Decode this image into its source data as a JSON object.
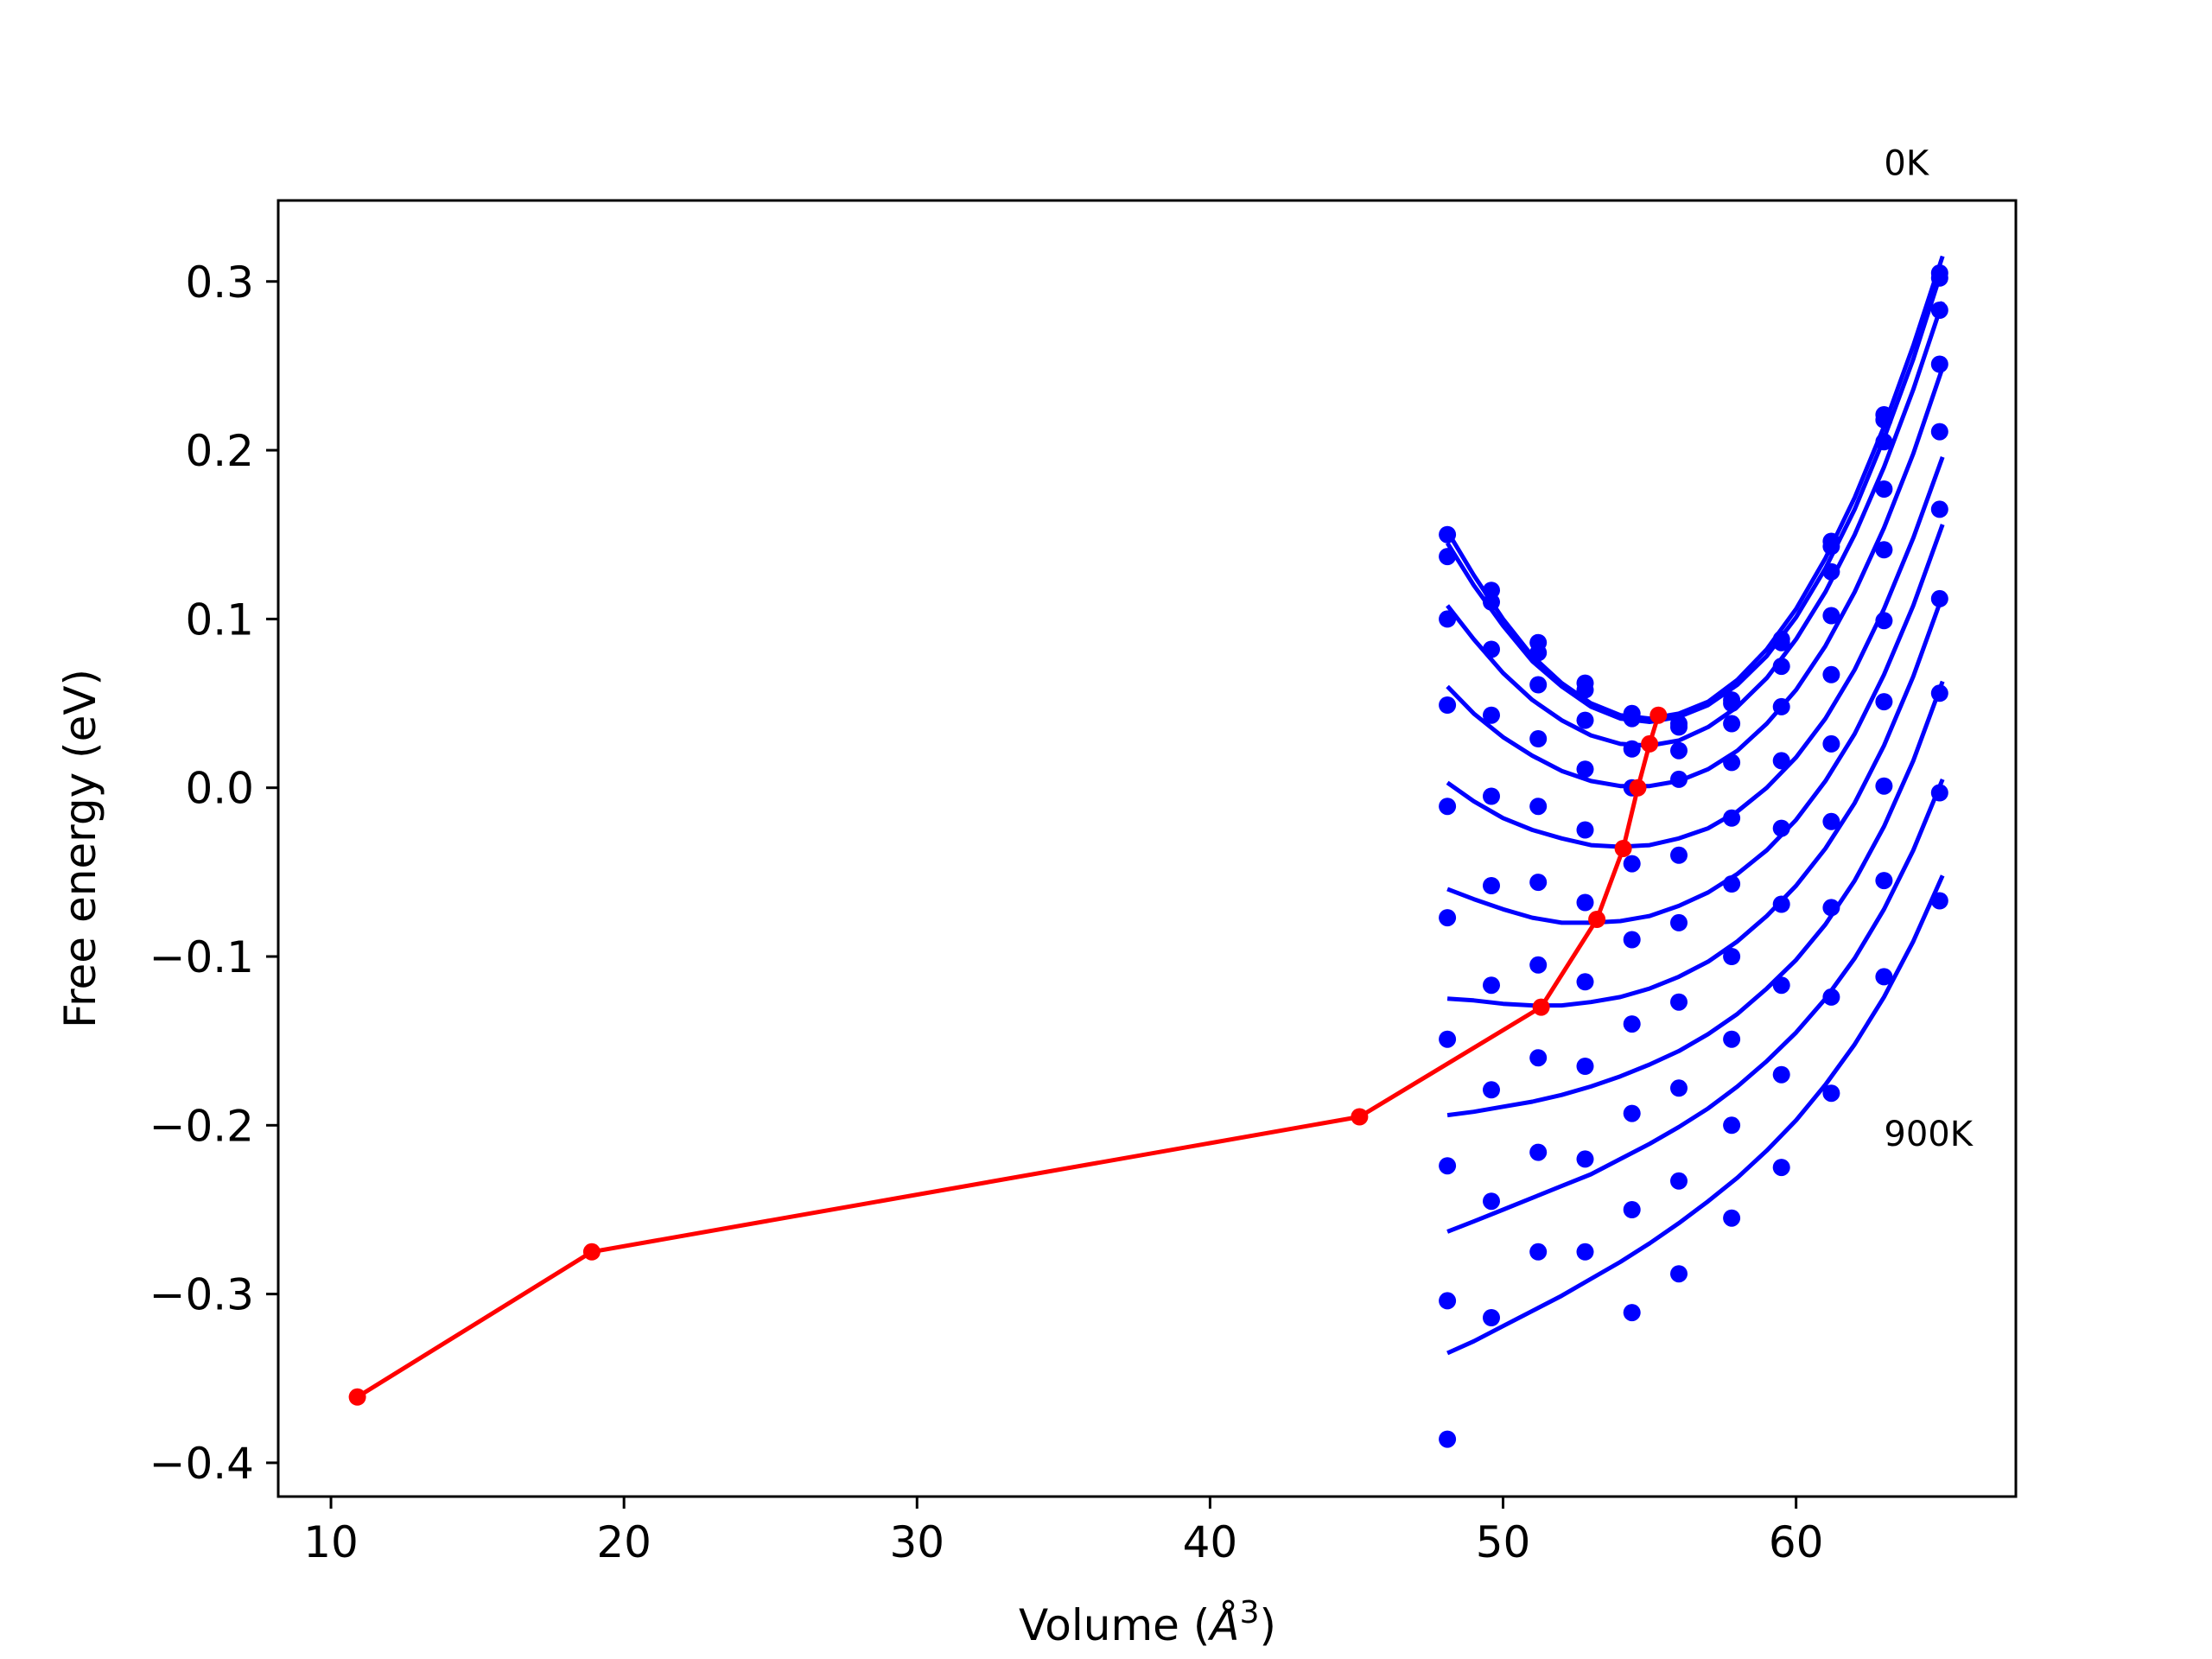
{
  "chart_data": {
    "type": "line",
    "title": "",
    "xlabel": "Volume (",
    "xlabel_symbol": "Å",
    "xlabel_exponent": "3",
    "xlabel_close": ")",
    "ylabel": "Free energy (eV)",
    "xlim": [
      8.2,
      67.5
    ],
    "ylim": [
      -0.42,
      0.348
    ],
    "xticks": [
      10,
      20,
      30,
      40,
      50,
      60
    ],
    "xtick_labels": [
      "10",
      "20",
      "30",
      "40",
      "50",
      "60"
    ],
    "yticks": [
      -0.4,
      -0.3,
      -0.2,
      -0.1,
      0.0,
      0.1,
      0.2,
      0.3
    ],
    "ytick_labels": [
      "−0.4",
      "−0.3",
      "−0.2",
      "−0.1",
      "0.0",
      "0.1",
      "0.2",
      "0.3"
    ],
    "grid": false,
    "annotations": [
      {
        "text": "0K",
        "x": 63.0,
        "y": 0.363
      },
      {
        "text": "900K",
        "x": 63.0,
        "y": -0.212
      }
    ],
    "colors": {
      "fit": "#0000ff",
      "points": "#0000ff",
      "minimum_path": "#ff0000"
    },
    "volumes": [
      48.1,
      49.6,
      51.2,
      52.8,
      54.4,
      56.0,
      57.8,
      59.5,
      61.2,
      63.0,
      64.9
    ],
    "point_series": [
      {
        "values": [
          0.15,
          0.117,
          0.086,
          0.062,
          0.044,
          0.038,
          0.052,
          0.088,
          0.146,
          0.221,
          0.305
        ]
      },
      {
        "values": [
          0.137,
          0.11,
          0.08,
          0.058,
          0.041,
          0.036,
          0.05,
          0.086,
          0.143,
          0.218,
          0.302
        ]
      },
      {
        "values": [
          0.1,
          0.082,
          0.061,
          0.04,
          0.023,
          0.022,
          0.038,
          0.072,
          0.128,
          0.205,
          0.283
        ]
      },
      {
        "values": [
          0.049,
          0.043,
          0.029,
          0.011,
          0.0,
          0.005,
          0.015,
          0.048,
          0.102,
          0.177,
          0.251
        ]
      },
      {
        "values": [
          -0.011,
          -0.005,
          -0.011,
          -0.025,
          -0.045,
          -0.04,
          -0.018,
          0.016,
          0.067,
          0.141,
          0.211
        ]
      },
      {
        "values": [
          -0.077,
          -0.058,
          -0.056,
          -0.068,
          -0.09,
          -0.08,
          -0.057,
          -0.024,
          0.026,
          0.099,
          0.165
        ]
      },
      {
        "values": [
          -0.149,
          -0.117,
          -0.105,
          -0.115,
          -0.14,
          -0.127,
          -0.1,
          -0.069,
          -0.02,
          0.051,
          0.112
        ]
      },
      {
        "values": [
          -0.224,
          -0.179,
          -0.16,
          -0.165,
          -0.193,
          -0.178,
          -0.149,
          -0.117,
          -0.071,
          0.001,
          0.056
        ]
      },
      {
        "values": [
          -0.304,
          -0.245,
          -0.216,
          -0.22,
          -0.25,
          -0.233,
          -0.2,
          -0.17,
          -0.124,
          -0.055,
          -0.003
        ]
      },
      {
        "values": [
          -0.386,
          -0.314,
          -0.275,
          -0.275,
          -0.311,
          -0.288,
          -0.255,
          -0.225,
          -0.181,
          -0.112,
          -0.067
        ]
      }
    ],
    "fit_series": [
      {
        "x": [
          48.1,
          49.0,
          50.0,
          51.0,
          52.0,
          53.0,
          54.0,
          55.0,
          56.0,
          57.0,
          58.0,
          59.0,
          60.0,
          61.0,
          62.0,
          63.0,
          64.0,
          65.0
        ],
        "y": [
          0.152,
          0.126,
          0.1,
          0.078,
          0.062,
          0.05,
          0.043,
          0.041,
          0.044,
          0.051,
          0.064,
          0.082,
          0.106,
          0.136,
          0.172,
          0.214,
          0.262,
          0.315
        ]
      },
      {
        "x": [
          48.1,
          49.0,
          50.0,
          51.0,
          52.0,
          53.0,
          54.0,
          55.0,
          56.0,
          57.0,
          58.0,
          59.0,
          60.0,
          61.0,
          62.0,
          63.0,
          64.0,
          65.0
        ],
        "y": [
          0.145,
          0.12,
          0.096,
          0.075,
          0.06,
          0.048,
          0.041,
          0.039,
          0.042,
          0.049,
          0.061,
          0.078,
          0.101,
          0.13,
          0.165,
          0.207,
          0.254,
          0.308
        ]
      },
      {
        "x": [
          48.1,
          49.0,
          50.0,
          51.0,
          52.0,
          53.0,
          54.0,
          55.0,
          56.0,
          57.0,
          58.0,
          59.0,
          60.0,
          61.0,
          62.0,
          63.0,
          64.0,
          65.0
        ],
        "y": [
          0.108,
          0.088,
          0.068,
          0.052,
          0.04,
          0.031,
          0.026,
          0.025,
          0.028,
          0.036,
          0.048,
          0.065,
          0.088,
          0.116,
          0.15,
          0.19,
          0.236,
          0.288
        ]
      },
      {
        "x": [
          48.1,
          49.0,
          50.0,
          51.0,
          52.0,
          53.0,
          54.0,
          55.0,
          56.0,
          57.0,
          58.0,
          59.0,
          60.0,
          61.0,
          62.0,
          63.0,
          64.0,
          65.0
        ],
        "y": [
          0.06,
          0.044,
          0.03,
          0.019,
          0.01,
          0.004,
          0.001,
          0.001,
          0.004,
          0.011,
          0.022,
          0.038,
          0.058,
          0.084,
          0.116,
          0.154,
          0.198,
          0.249
        ]
      },
      {
        "x": [
          48.1,
          49.0,
          50.0,
          51.0,
          52.0,
          53.0,
          54.0,
          55.0,
          56.0,
          57.0,
          58.0,
          59.0,
          60.0,
          61.0,
          62.0,
          63.0,
          64.0,
          65.0
        ],
        "y": [
          0.003,
          -0.008,
          -0.018,
          -0.025,
          -0.03,
          -0.034,
          -0.035,
          -0.034,
          -0.03,
          -0.024,
          -0.014,
          0.0,
          0.018,
          0.041,
          0.07,
          0.106,
          0.148,
          0.196
        ]
      },
      {
        "x": [
          48.1,
          49.0,
          50.0,
          51.0,
          52.0,
          53.0,
          54.0,
          55.0,
          56.0,
          57.0,
          58.0,
          59.0,
          60.0,
          61.0,
          62.0,
          63.0,
          64.0,
          65.0
        ],
        "y": [
          -0.06,
          -0.066,
          -0.072,
          -0.077,
          -0.08,
          -0.08,
          -0.079,
          -0.076,
          -0.07,
          -0.062,
          -0.051,
          -0.037,
          -0.019,
          0.004,
          0.032,
          0.067,
          0.108,
          0.156
        ]
      },
      {
        "x": [
          48.1,
          49.0,
          50.0,
          51.0,
          52.0,
          53.0,
          54.0,
          55.0,
          56.0,
          57.0,
          58.0,
          59.0,
          60.0,
          61.0,
          62.0,
          63.0,
          64.0,
          65.0
        ],
        "y": [
          -0.125,
          -0.126,
          -0.128,
          -0.129,
          -0.129,
          -0.127,
          -0.124,
          -0.119,
          -0.112,
          -0.103,
          -0.091,
          -0.076,
          -0.058,
          -0.036,
          -0.009,
          0.025,
          0.066,
          0.114
        ]
      },
      {
        "x": [
          48.1,
          49.0,
          50.0,
          51.0,
          52.0,
          53.0,
          54.0,
          55.0,
          56.0,
          57.0,
          58.0,
          59.0,
          60.0,
          61.0,
          62.0,
          63.0,
          64.0,
          65.0
        ],
        "y": [
          -0.194,
          -0.192,
          -0.189,
          -0.186,
          -0.182,
          -0.177,
          -0.171,
          -0.164,
          -0.156,
          -0.146,
          -0.134,
          -0.119,
          -0.102,
          -0.081,
          -0.055,
          -0.023,
          0.016,
          0.063
        ]
      },
      {
        "x": [
          48.1,
          49.0,
          50.0,
          51.0,
          52.0,
          53.0,
          54.0,
          55.0,
          56.0,
          57.0,
          58.0,
          59.0,
          60.0,
          61.0,
          62.0,
          63.0,
          64.0,
          65.0
        ],
        "y": [
          -0.263,
          -0.257,
          -0.25,
          -0.243,
          -0.236,
          -0.229,
          -0.22,
          -0.211,
          -0.201,
          -0.19,
          -0.177,
          -0.162,
          -0.145,
          -0.125,
          -0.101,
          -0.072,
          -0.037,
          0.005
        ]
      },
      {
        "x": [
          48.1,
          49.0,
          50.0,
          51.0,
          52.0,
          53.0,
          54.0,
          55.0,
          56.0,
          57.0,
          58.0,
          59.0,
          60.0,
          61.0,
          62.0,
          63.0,
          64.0,
          65.0
        ],
        "y": [
          -0.335,
          -0.328,
          -0.319,
          -0.31,
          -0.301,
          -0.291,
          -0.281,
          -0.27,
          -0.258,
          -0.245,
          -0.231,
          -0.215,
          -0.197,
          -0.176,
          -0.152,
          -0.124,
          -0.091,
          -0.052
        ]
      }
    ],
    "minimum_path": {
      "x": [
        10.9,
        18.9,
        45.1,
        51.3,
        53.2,
        54.1,
        54.6,
        55.0,
        55.3
      ],
      "y": [
        -0.361,
        -0.275,
        -0.195,
        -0.13,
        -0.078,
        -0.036,
        0.0,
        0.026,
        0.043
      ]
    }
  }
}
